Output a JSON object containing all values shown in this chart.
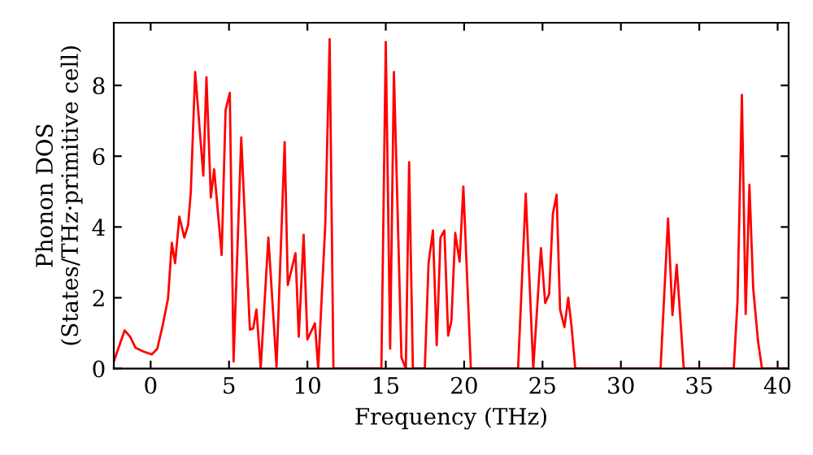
{
  "chart_data": {
    "type": "line",
    "xlabel": "Frequency (THz)",
    "ylabel": "Phonon DOS\n(States/THz·primitive cell)",
    "series": [
      {
        "color": "#ff0000",
        "x": [
          -2.35,
          -1.66,
          -1.31,
          -0.97,
          -0.45,
          0.07,
          0.42,
          0.76,
          1.11,
          1.35,
          1.56,
          1.83,
          2.15,
          2.39,
          2.56,
          2.84,
          3.36,
          3.56,
          3.84,
          4.05,
          4.53,
          4.78,
          5.05,
          5.29,
          5.78,
          6.33,
          6.54,
          6.75,
          7.02,
          7.51,
          8.03,
          8.55,
          8.75,
          9.24,
          9.45,
          9.76,
          10.0,
          10.48,
          10.69,
          11.14,
          11.42,
          11.66,
          14.72,
          15.0,
          15.28,
          15.52,
          16.0,
          16.28,
          16.49,
          16.73,
          17.49,
          17.73,
          18.01,
          18.25,
          18.49,
          18.74,
          18.98,
          19.19,
          19.43,
          19.71,
          19.95,
          20.43,
          23.44,
          23.93,
          24.41,
          24.9,
          25.17,
          25.42,
          25.66,
          25.9,
          26.12,
          26.4,
          26.64,
          26.85,
          27.09,
          32.53,
          33.01,
          33.29,
          33.56,
          34.01,
          37.2,
          37.44,
          37.72,
          37.96,
          38.2,
          38.44,
          38.75,
          39.0,
          40.7
        ],
        "values": [
          0.2,
          1.08,
          0.9,
          0.59,
          0.48,
          0.4,
          0.56,
          1.2,
          1.98,
          3.55,
          2.98,
          4.29,
          3.7,
          4.06,
          4.98,
          8.38,
          5.45,
          8.23,
          4.83,
          5.63,
          3.21,
          7.3,
          7.79,
          0.2,
          6.53,
          1.1,
          1.13,
          1.67,
          0,
          3.7,
          0.05,
          6.4,
          2.36,
          3.26,
          0.9,
          3.78,
          0.82,
          1.28,
          0,
          4.06,
          9.31,
          0,
          0,
          9.23,
          0.56,
          8.38,
          0.31,
          0,
          5.83,
          0,
          0,
          2.98,
          3.9,
          0.66,
          3.7,
          3.9,
          0.93,
          1.36,
          3.83,
          3.02,
          5.14,
          0,
          0,
          4.94,
          0,
          3.4,
          1.85,
          2.1,
          4.37,
          4.91,
          1.67,
          1.17,
          2.0,
          1.2,
          0,
          0,
          4.24,
          1.51,
          2.93,
          0,
          0,
          1.9,
          7.73,
          1.54,
          5.19,
          2.28,
          0.77,
          0,
          0
        ]
      }
    ],
    "xlim": [
      -2.35,
      40.7
    ],
    "xticks": [
      0,
      5,
      10,
      15,
      20,
      25,
      30,
      35,
      40
    ],
    "ylim": [
      0,
      9.77
    ],
    "yticks": [
      0,
      2,
      4,
      6,
      8
    ],
    "grid": false,
    "legend": false,
    "marker": "none",
    "line_style": "solid"
  }
}
